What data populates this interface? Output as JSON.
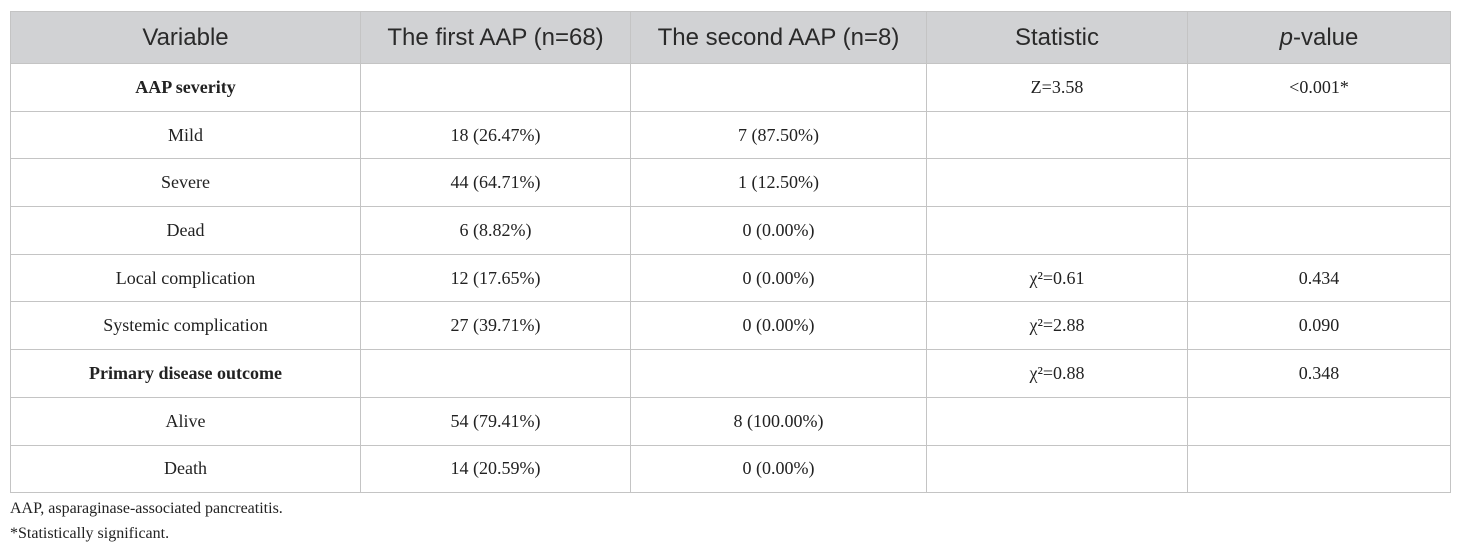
{
  "table": {
    "header": [
      "Variable",
      "The first AAP (n=68)",
      "The second AAP (n=8)",
      "Statistic",
      [
        "p",
        "-value"
      ]
    ],
    "rows": [
      {
        "variable": "AAP severity",
        "statistic": "Z=3.58",
        "p_value": "<0.001*"
      },
      {
        "variable": "Mild",
        "first": "18 (26.47%)",
        "second": "7 (87.50%)"
      },
      {
        "variable": "Severe",
        "first": "44 (64.71%)",
        "second": "1 (12.50%)"
      },
      {
        "variable": "Dead",
        "first": "6 (8.82%)",
        "second": "0 (0.00%)"
      },
      {
        "variable": "Local complication",
        "first": "12 (17.65%)",
        "second": "0 (0.00%)",
        "statistic": "χ²=0.61",
        "p_value": "0.434"
      },
      {
        "variable": "Systemic complication",
        "first": "27 (39.71%)",
        "second": "0 (0.00%)",
        "statistic": "χ²=2.88",
        "p_value": "0.090"
      },
      {
        "variable": "Primary disease outcome",
        "statistic": "χ²=0.88",
        "p_value": "0.348"
      },
      {
        "variable": "Alive",
        "first": "54 (79.41%)",
        "second": "8 (100.00%)"
      },
      {
        "variable": "Death",
        "first": "14 (20.59%)",
        "second": "0 (0.00%)"
      }
    ]
  },
  "footnotes": [
    "AAP, asparaginase-associated pancreatitis.",
    "*Statistically significant."
  ]
}
